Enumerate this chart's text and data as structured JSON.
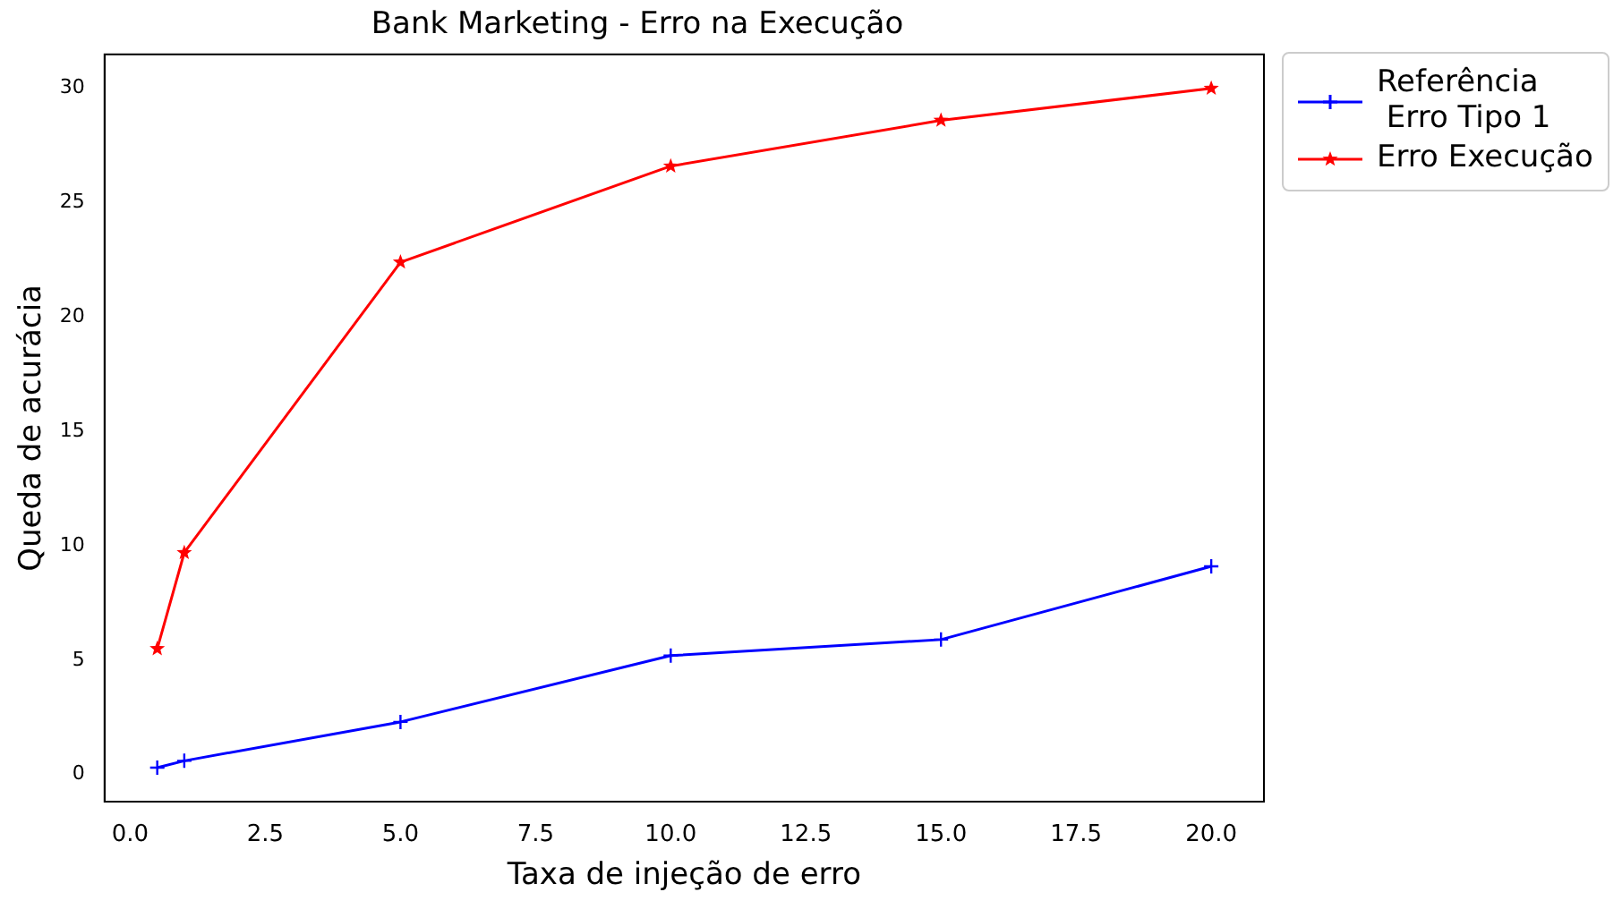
{
  "chart_data": {
    "type": "line",
    "title": "Bank Marketing - Erro na Execução",
    "xlabel": "Taxa de injeção de erro",
    "ylabel": "Queda de acurácia",
    "x": [
      0.5,
      1,
      5,
      10,
      15,
      20
    ],
    "series": [
      {
        "name": "Referência\n Erro Tipo 1",
        "color": "#0000ff",
        "marker": "cross",
        "values": [
          0.3,
          0.6,
          2.3,
          5.2,
          5.9,
          9.1
        ]
      },
      {
        "name": "Erro Execução",
        "color": "#ff0000",
        "marker": "star",
        "values": [
          5.5,
          9.7,
          22.4,
          26.6,
          28.6,
          30
        ]
      }
    ],
    "xlim": [
      -0.475,
      20.975
    ],
    "xticks": [
      {
        "value": 0,
        "label": "0.0"
      },
      {
        "value": 2.5,
        "label": "2.5"
      },
      {
        "value": 5,
        "label": "5.0"
      },
      {
        "value": 7.5,
        "label": "7.5"
      },
      {
        "value": 10,
        "label": "10.0"
      },
      {
        "value": 12.5,
        "label": "12.5"
      },
      {
        "value": 15,
        "label": "15.0"
      },
      {
        "value": 17.5,
        "label": "17.5"
      },
      {
        "value": 20,
        "label": "20.0"
      }
    ],
    "ylim": [
      -1.185,
      31.485
    ],
    "yticks": [
      0,
      5,
      10,
      15,
      20,
      25,
      30
    ],
    "legend": "top right",
    "grid": false,
    "line_style": "solid"
  }
}
